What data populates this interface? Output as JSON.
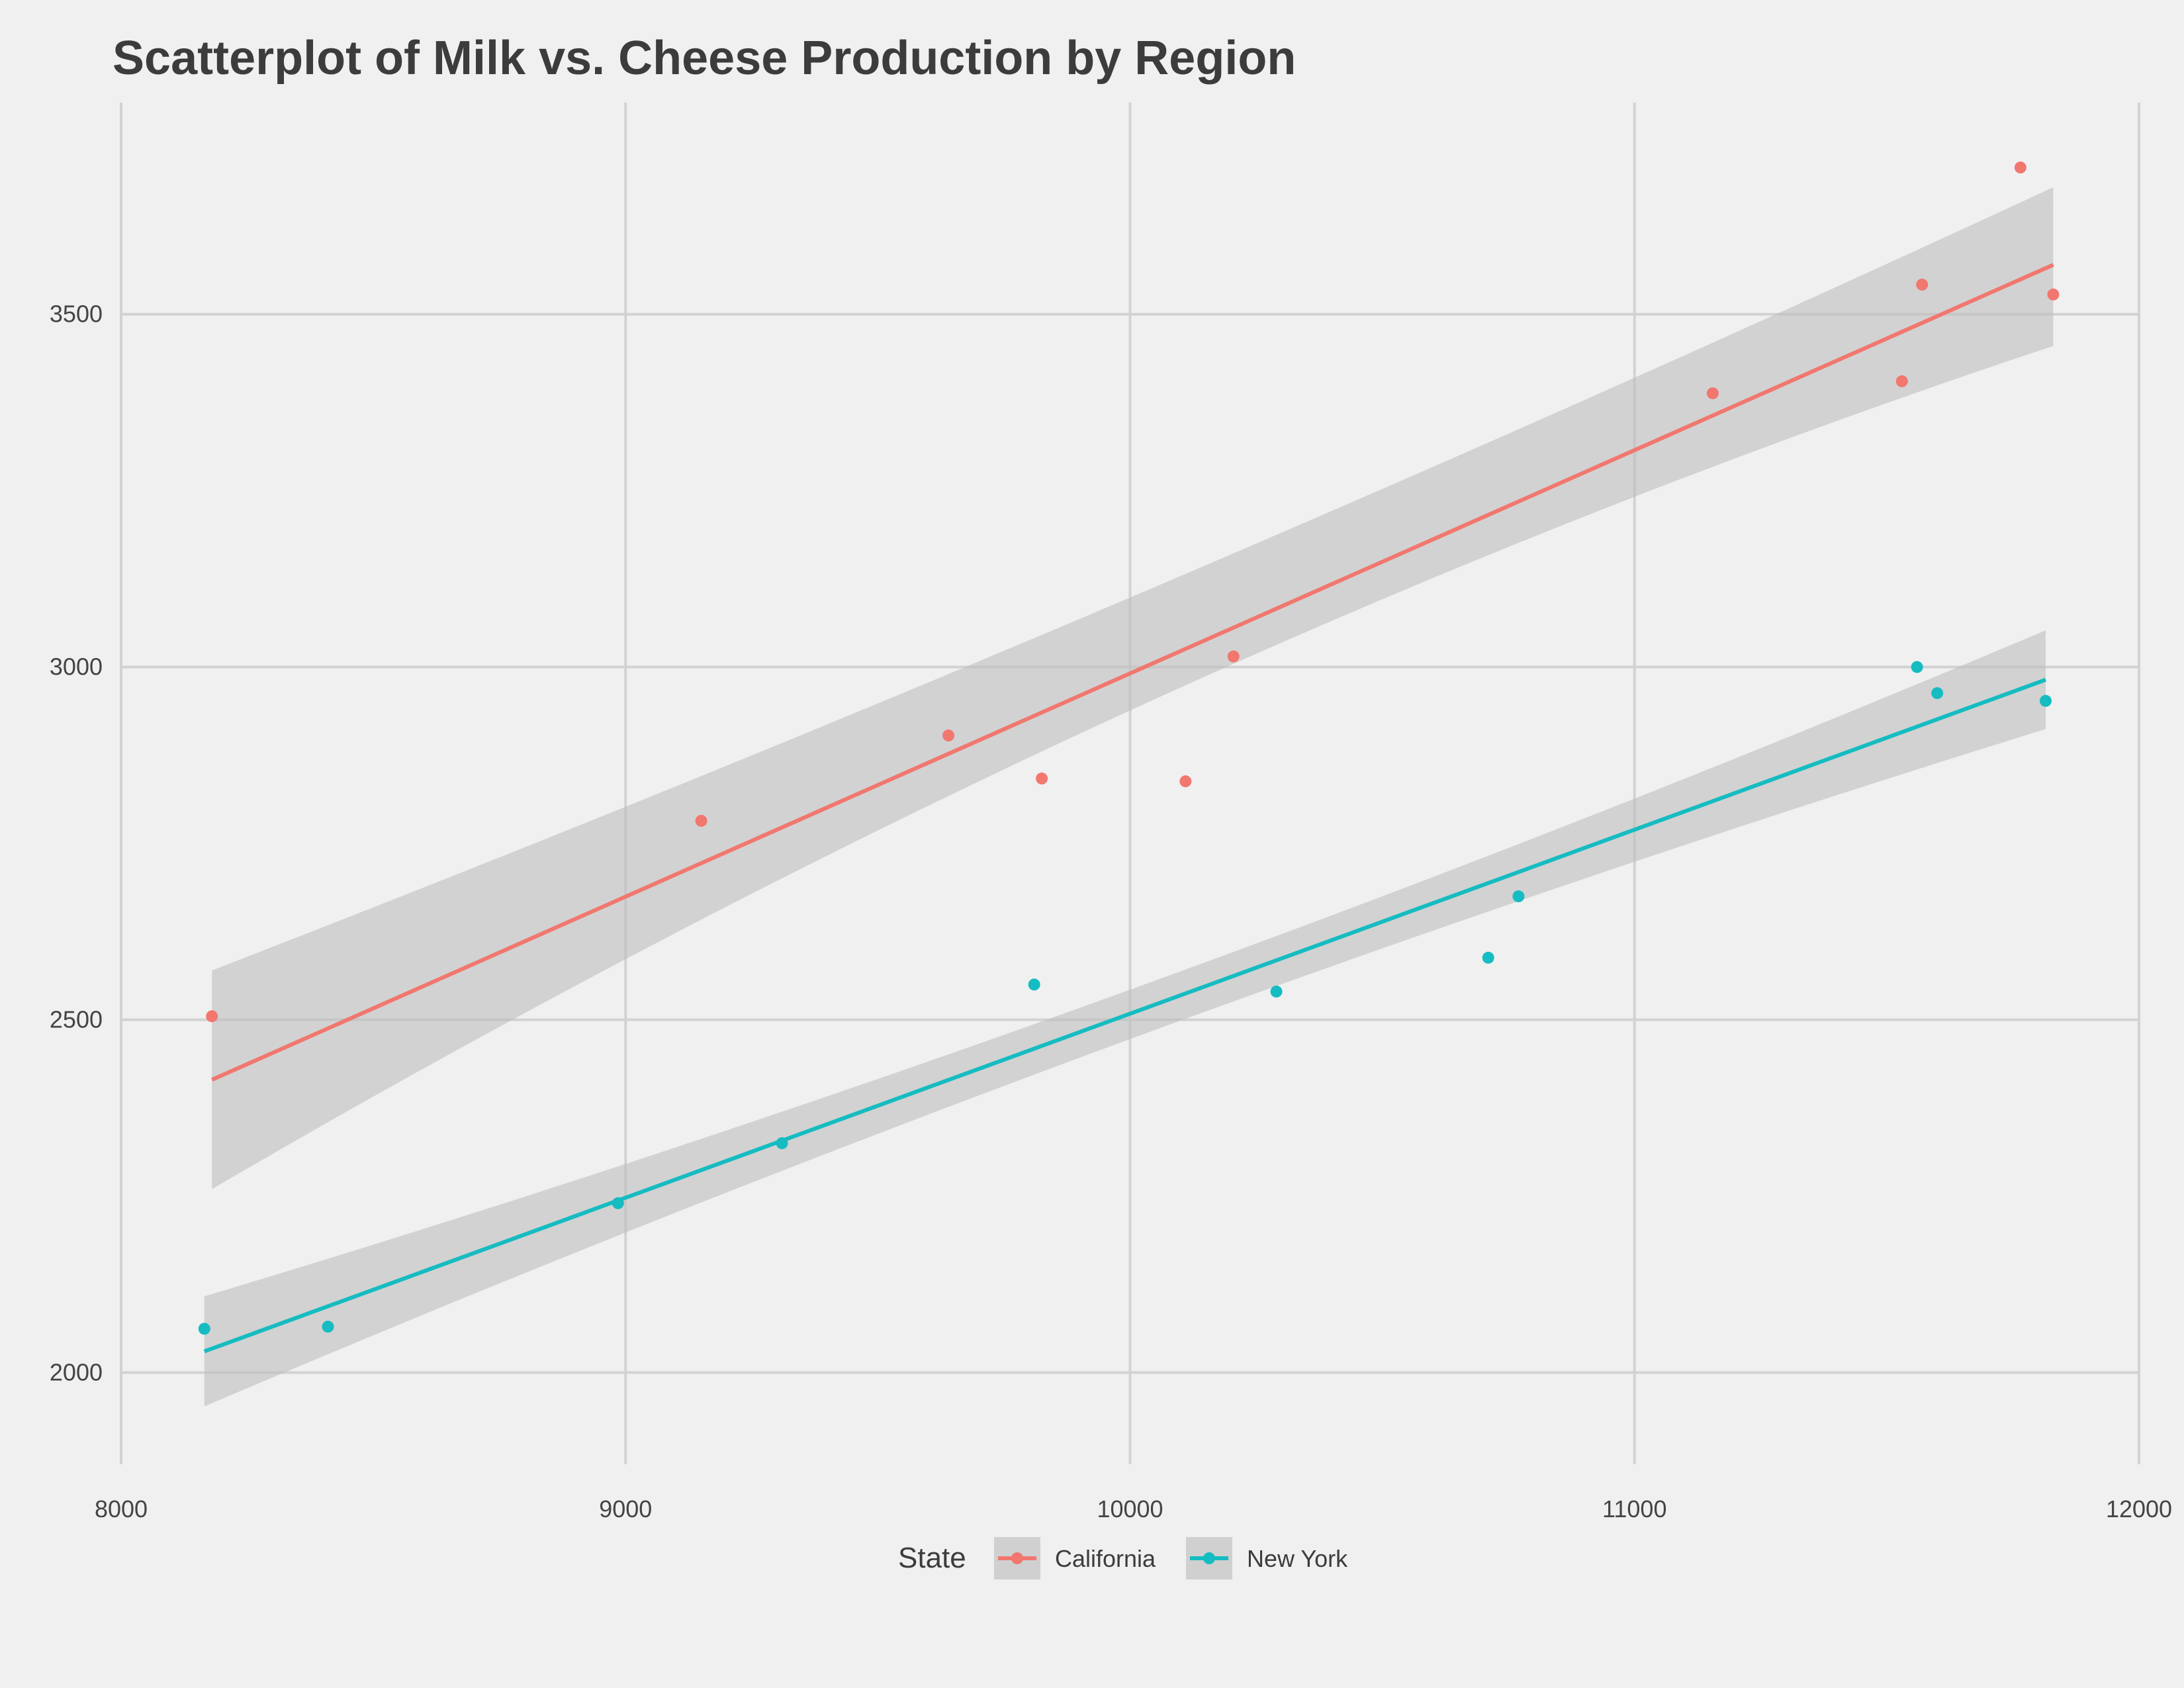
{
  "chart_data": {
    "type": "scatter",
    "title": "Scatterplot of Milk vs. Cheese Production by Region",
    "xlabel": "",
    "ylabel": "",
    "xlim": [
      8000,
      12000
    ],
    "ylim": [
      1870,
      3800
    ],
    "x_ticks": [
      8000,
      9000,
      10000,
      11000,
      12000
    ],
    "y_ticks": [
      2000,
      2500,
      3000,
      3500
    ],
    "grid": true,
    "legend": {
      "title": "State",
      "position": "bottom"
    },
    "band_color": "#bebebe",
    "series": [
      {
        "name": "California",
        "color": "#f1776f",
        "points": [
          {
            "x": 8180,
            "y": 2505
          },
          {
            "x": 9150,
            "y": 2782
          },
          {
            "x": 9640,
            "y": 2903
          },
          {
            "x": 9825,
            "y": 2842
          },
          {
            "x": 10110,
            "y": 2838
          },
          {
            "x": 10205,
            "y": 3015
          },
          {
            "x": 11155,
            "y": 3388
          },
          {
            "x": 11530,
            "y": 3405
          },
          {
            "x": 11570,
            "y": 3542
          },
          {
            "x": 11765,
            "y": 3708
          },
          {
            "x": 11830,
            "y": 3528
          }
        ],
        "fit": {
          "x0": 8180,
          "y0": 2415,
          "x1": 11830,
          "y1": 3570
        },
        "ci": {
          "lower0": 2260,
          "upper0": 2570,
          "lowerMid": 2940,
          "upperMid": 3100,
          "lower1": 3455,
          "upper1": 3680
        }
      },
      {
        "name": "New York",
        "color": "#15bcc1",
        "points": [
          {
            "x": 8165,
            "y": 2062
          },
          {
            "x": 8410,
            "y": 2065
          },
          {
            "x": 8985,
            "y": 2240
          },
          {
            "x": 9310,
            "y": 2325
          },
          {
            "x": 9810,
            "y": 2550
          },
          {
            "x": 10290,
            "y": 2540
          },
          {
            "x": 10710,
            "y": 2588
          },
          {
            "x": 10770,
            "y": 2675
          },
          {
            "x": 11560,
            "y": 3000
          },
          {
            "x": 11600,
            "y": 2963
          },
          {
            "x": 11815,
            "y": 2952
          }
        ],
        "fit": {
          "x0": 8165,
          "y0": 2030,
          "x1": 11815,
          "y1": 2982
        },
        "ci": {
          "lower0": 1952,
          "upper0": 2108,
          "lowerMid": 2470,
          "upperMid": 2540,
          "lower1": 2912,
          "upper1": 3052
        }
      }
    ]
  }
}
